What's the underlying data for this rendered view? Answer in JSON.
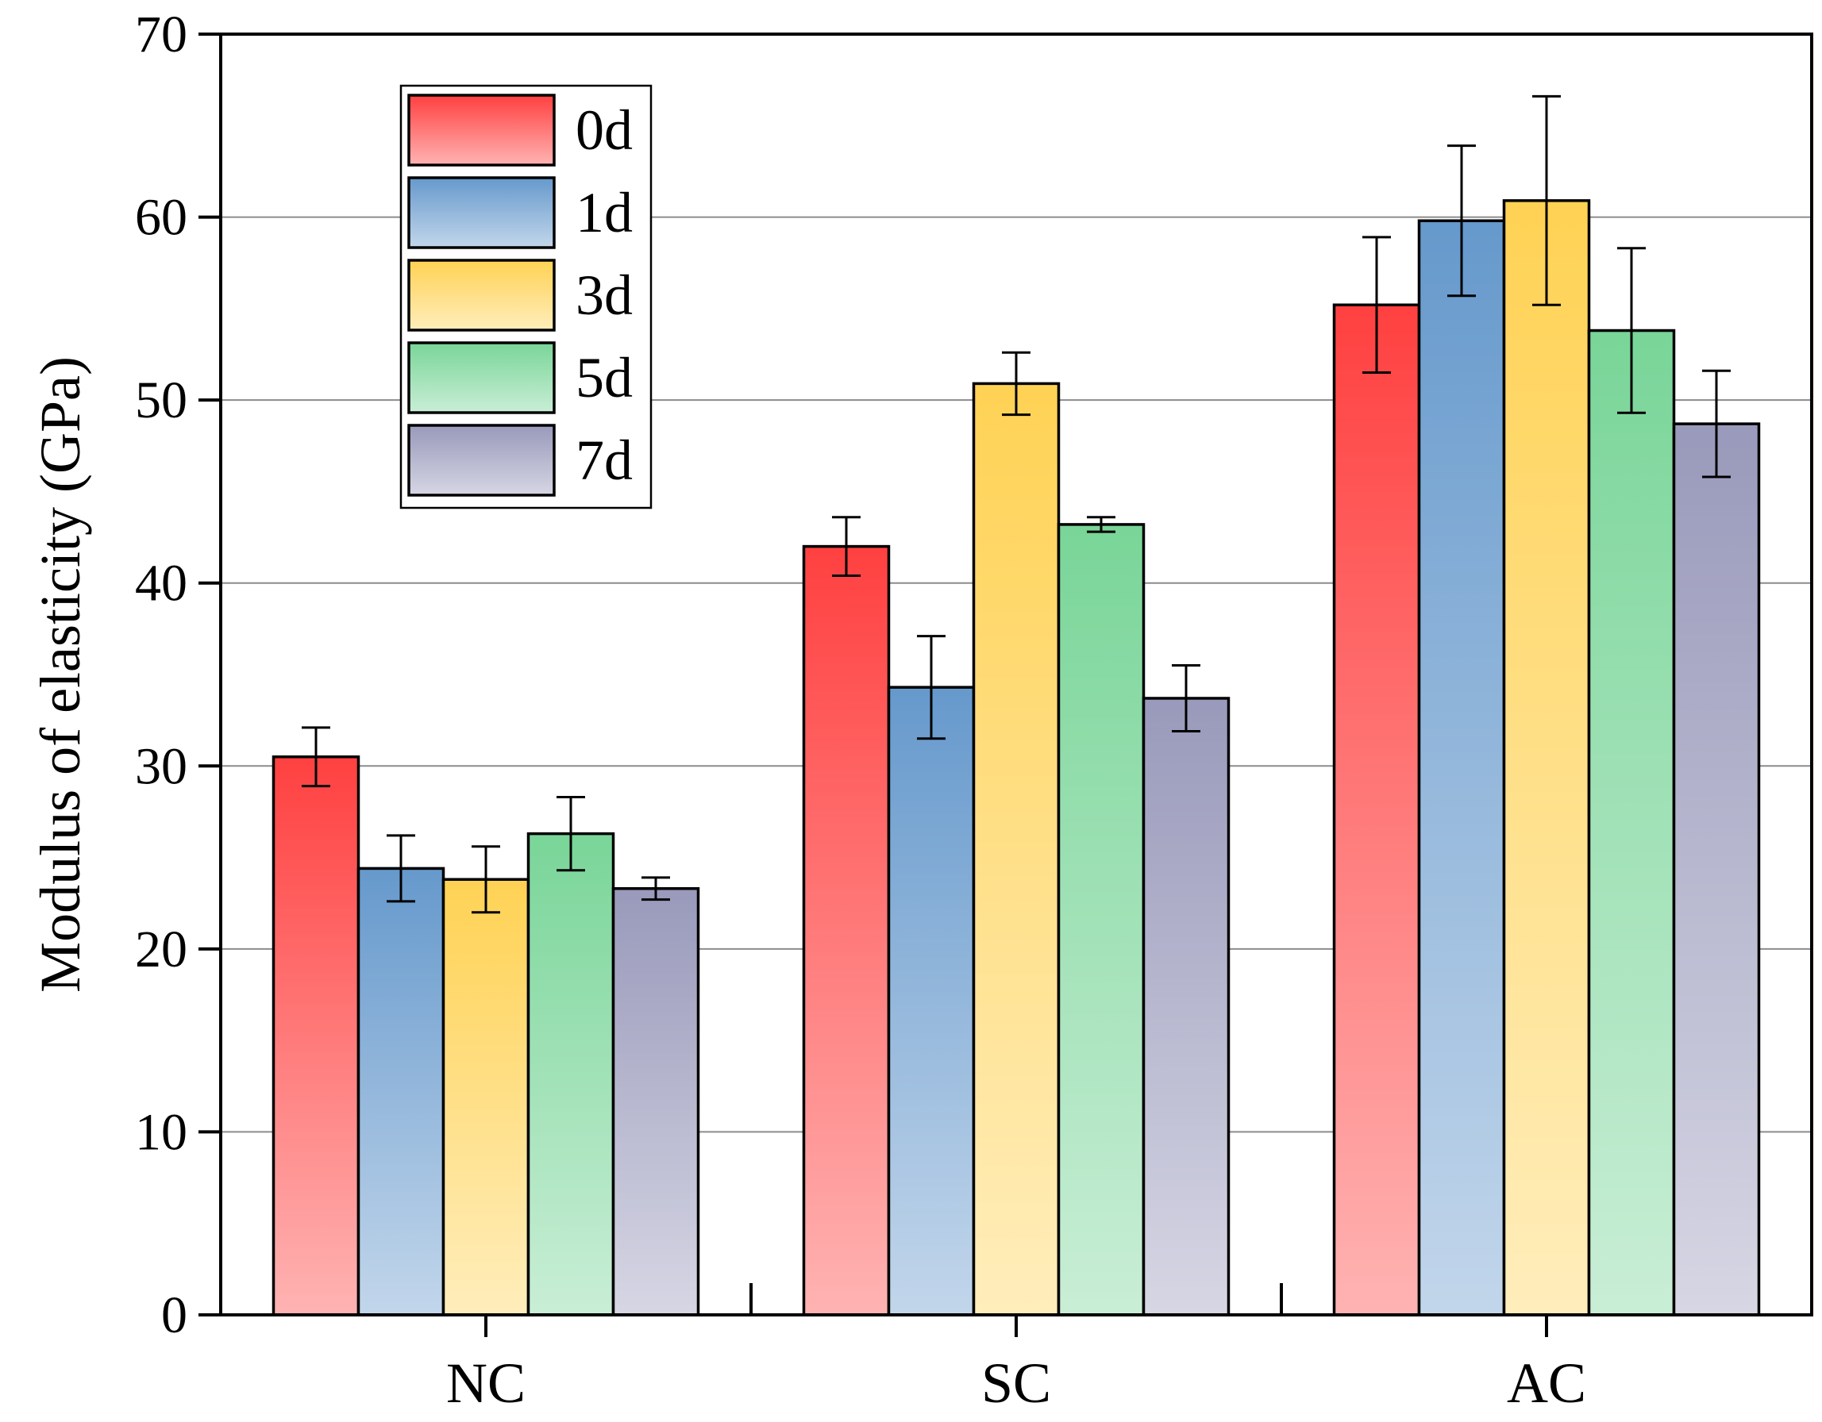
{
  "chart_data": {
    "type": "bar",
    "title": "",
    "xlabel": "",
    "ylabel": "Modulus of elasticity (GPa)",
    "ylim": [
      0,
      70
    ],
    "yticks": [
      0,
      10,
      20,
      30,
      40,
      50,
      60,
      70
    ],
    "grid": true,
    "legend_position": "top-left",
    "categories": [
      "NC",
      "SC",
      "AC"
    ],
    "series": [
      {
        "name": "0d",
        "values": [
          30.5,
          42.0,
          55.2
        ],
        "errors": [
          1.6,
          1.6,
          3.7
        ],
        "color": "#ff4040"
      },
      {
        "name": "1d",
        "values": [
          24.4,
          34.3,
          59.8
        ],
        "errors": [
          1.8,
          2.8,
          4.1
        ],
        "color": "#6699cc"
      },
      {
        "name": "3d",
        "values": [
          23.8,
          50.9,
          60.9
        ],
        "errors": [
          1.8,
          1.7,
          5.7
        ],
        "color": "#ffd254"
      },
      {
        "name": "5d",
        "values": [
          26.3,
          43.2,
          53.8
        ],
        "errors": [
          2.0,
          0.4,
          4.5
        ],
        "color": "#79d598"
      },
      {
        "name": "7d",
        "values": [
          23.3,
          33.7,
          48.7
        ],
        "errors": [
          0.6,
          1.8,
          2.9
        ],
        "color": "#9999bb"
      }
    ]
  }
}
